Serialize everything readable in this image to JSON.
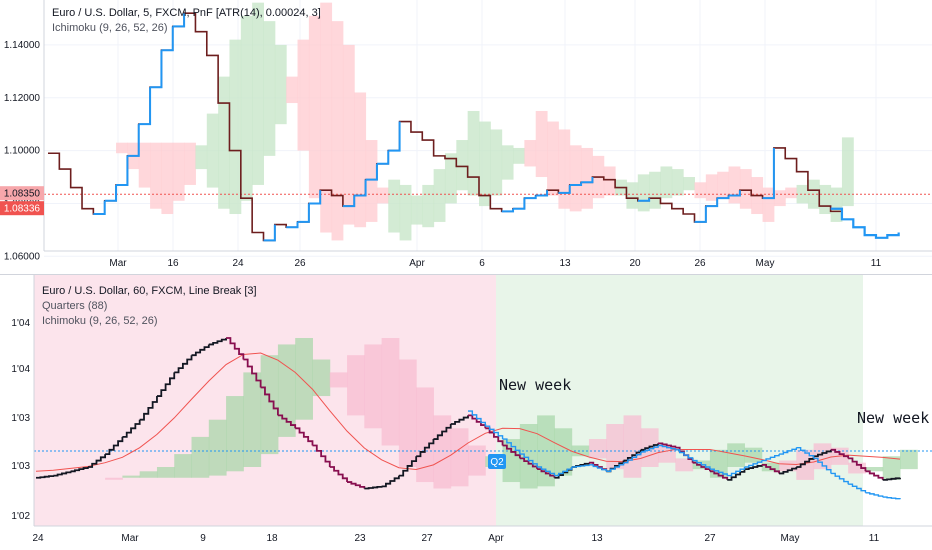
{
  "top_chart": {
    "legend_title": "Euro / U.S. Dollar, 5, FXCM, PnF [ATR(14), 0.00024, 3]",
    "legend_indicator": "Ichimoku (9, 26, 52, 26)",
    "price_tags": [
      {
        "value": "1.08350",
        "color": "#f7a7ab",
        "text_color": "#131722"
      },
      {
        "value": "1.08336",
        "color": "#f05350",
        "text_color": "#ffffff"
      }
    ],
    "colors": {
      "up": "#2196f3",
      "down": "#6d1e1e",
      "kumo_bull": "#c8e6c9",
      "kumo_bear": "#ffcdd2",
      "hline": "#f05350"
    }
  },
  "bottom_chart": {
    "legend_title": "Euro / U.S. Dollar, 60, FXCM, Line Break [3]",
    "legend_indicators": [
      "Quarters (88)",
      "Ichimoku (9, 26, 52, 26)"
    ],
    "annotations": [
      "New week",
      "New week"
    ],
    "quarter_tag": "Q2",
    "colors": {
      "q1_bg": "#fce4ec",
      "q2_bg": "#e8f5e9",
      "up": "#131722",
      "down": "#880e4f",
      "future": "#2196f3",
      "baseline": "#2196f3",
      "ichimoku_line": "#f05350"
    }
  },
  "chart_data": [
    {
      "type": "line",
      "title": "Euro / U.S. Dollar, 5, FXCM, PnF [ATR(14), 0.00024, 3]",
      "x_ticks": [
        "Mar",
        "16",
        "24",
        "26",
        "Apr",
        "6",
        "13",
        "20",
        "26",
        "May",
        "11"
      ],
      "y_ticks": [
        "1.14000",
        "1.12000",
        "1.10000",
        "1.08000",
        "1.06000"
      ],
      "ylim": [
        1.062,
        1.157
      ],
      "horizontal_line": 1.0835,
      "series": [
        {
          "values": [
            1.099,
            1.093,
            1.086,
            1.078,
            1.076,
            1.081,
            1.087,
            1.098,
            1.11,
            1.124,
            1.138,
            1.147,
            1.152,
            1.145,
            1.136,
            1.118,
            1.1,
            1.082,
            1.069,
            1.066,
            1.072,
            1.071,
            1.073,
            1.08,
            1.085,
            1.083,
            1.079,
            1.083,
            1.089,
            1.095,
            1.1,
            1.111,
            1.107,
            1.104,
            1.098,
            1.097,
            1.094,
            1.09,
            1.083,
            1.078,
            1.077,
            1.078,
            1.082,
            1.083,
            1.085,
            1.084,
            1.087,
            1.088,
            1.09,
            1.089,
            1.086,
            1.082,
            1.081,
            1.082,
            1.08,
            1.078,
            1.076,
            1.073,
            1.079,
            1.082,
            1.083,
            1.085,
            1.083,
            1.082,
            1.101,
            1.097,
            1.092,
            1.085,
            1.079,
            1.077,
            1.075
          ]
        },
        {
          "values": [
            null,
            null,
            null,
            null,
            null,
            null,
            null,
            null,
            null,
            null,
            null,
            null,
            null,
            null,
            null,
            null,
            null,
            null,
            null,
            null,
            null,
            null,
            null,
            null,
            null,
            null,
            null,
            null,
            null,
            null,
            null,
            null,
            null,
            null,
            null,
            null,
            null,
            null,
            null,
            null,
            null,
            null,
            null,
            null,
            null,
            null,
            null,
            null,
            null,
            null,
            null,
            null,
            null,
            null,
            null,
            null,
            null,
            null,
            null,
            null,
            null,
            null,
            null,
            null,
            null,
            null,
            null,
            null,
            null,
            1.078,
            1.074,
            1.071,
            1.068,
            1.067,
            1.068,
            1.069
          ]
        }
      ]
    },
    {
      "type": "line",
      "title": "Euro / U.S. Dollar, 60, FXCM, Line Break [3]",
      "x_ticks": [
        "24",
        "Mar",
        "9",
        "18",
        "23",
        "27",
        "Apr",
        "13",
        "27",
        "May",
        "11"
      ],
      "y_ticks": [
        "1'04",
        "1'04",
        "1'03",
        "1'03",
        "1'02"
      ],
      "ylim": [
        0,
        100
      ],
      "series": [
        {
          "values": [
            15,
            16,
            18,
            20,
            26,
            34,
            42,
            53,
            64,
            72,
            77,
            80,
            70,
            57,
            44,
            38,
            30,
            20,
            13,
            10,
            11,
            16,
            25,
            33,
            40,
            44,
            38,
            30,
            24,
            19,
            15,
            20,
            22,
            18,
            23,
            28,
            31,
            29,
            22,
            18,
            14,
            19,
            21,
            17,
            20,
            25,
            28,
            24,
            18,
            14,
            15
          ]
        },
        {
          "values": [
            null,
            null,
            null,
            null,
            null,
            null,
            null,
            null,
            null,
            null,
            null,
            null,
            null,
            null,
            null,
            null,
            null,
            null,
            null,
            null,
            null,
            null,
            null,
            null,
            null,
            46,
            39,
            33,
            26,
            20,
            16,
            20,
            21,
            18,
            22,
            27,
            30,
            28,
            23,
            19,
            16,
            20,
            23,
            26,
            29,
            24,
            17,
            12,
            8,
            6,
            5
          ]
        }
      ]
    }
  ]
}
